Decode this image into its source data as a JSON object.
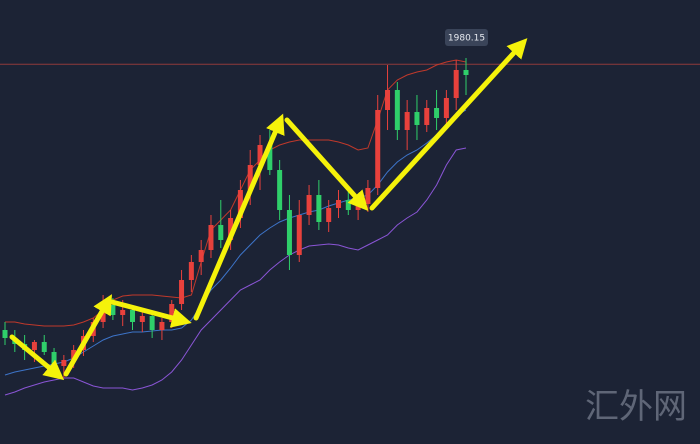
{
  "chart_data": {
    "type": "candlestick",
    "ylim": [
      1904.2,
      1993
    ],
    "up_color": "#e8413c",
    "down_color": "#2fcf6a",
    "open": [
      1927,
      1925.4,
      1924.2,
      1923,
      1924.6,
      1922.6,
      1919.8,
      1921,
      1923,
      1925.8,
      1928.6,
      1932,
      1930,
      1931,
      1928.6,
      1929.8,
      1927,
      1928.6,
      1932.2,
      1937,
      1940.6,
      1943,
      1948,
      1945,
      1949.4,
      1955,
      1960,
      1964,
      1959,
      1951,
      1942,
      1950,
      1954,
      1948.6,
      1951.4,
      1953,
      1951,
      1952.2,
      1955.4,
      1971,
      1975,
      1967,
      1970.6,
      1968,
      1971.4,
      1969.4,
      1973.4,
      1979
    ],
    "high": [
      1928.6,
      1927,
      1926,
      1925,
      1926,
      1923.4,
      1922,
      1924,
      1927,
      1929.4,
      1934,
      1933.4,
      1933,
      1932,
      1931,
      1930.6,
      1929.4,
      1933,
      1939,
      1942,
      1945,
      1950,
      1953,
      1951,
      1957,
      1963,
      1966,
      1967,
      1961,
      1954,
      1953,
      1956,
      1957,
      1953,
      1955,
      1955,
      1953.4,
      1957,
      1974,
      1980,
      1976.6,
      1973,
      1974,
      1973,
      1975,
      1975,
      1981,
      1981.4
    ],
    "low": [
      1924,
      1922.6,
      1921,
      1920.6,
      1922,
      1918.6,
      1917.4,
      1919.4,
      1921.8,
      1924.6,
      1927.4,
      1929,
      1927.8,
      1927,
      1926.6,
      1925.4,
      1925,
      1927.4,
      1931,
      1934.6,
      1938,
      1941.4,
      1943.4,
      1943,
      1947.4,
      1952,
      1955,
      1958,
      1949,
      1939,
      1940.6,
      1948,
      1947,
      1946.6,
      1949.4,
      1950,
      1949,
      1950.6,
      1954,
      1967,
      1965,
      1963,
      1965,
      1966.6,
      1967,
      1968,
      1971,
      1974
    ],
    "close": [
      1925.4,
      1924.2,
      1923,
      1924.6,
      1922.6,
      1919.8,
      1921,
      1923,
      1925.8,
      1928.6,
      1932,
      1930,
      1931,
      1928.6,
      1929.8,
      1927,
      1928.6,
      1932.2,
      1937,
      1940.6,
      1943,
      1948,
      1945,
      1949.4,
      1955,
      1960,
      1964,
      1959,
      1951,
      1942,
      1950,
      1954,
      1948.6,
      1951.4,
      1953,
      1951,
      1952.2,
      1955.4,
      1971,
      1975,
      1967,
      1970.6,
      1968,
      1971.4,
      1969.4,
      1973.4,
      1979,
      1978
    ],
    "bands": [
      {
        "color": "#c0392b",
        "values": [
          1928.6,
          1928.6,
          1928.2,
          1928,
          1927.8,
          1927.8,
          1927.8,
          1928,
          1928.6,
          1929.4,
          1931,
          1933,
          1933.8,
          1934,
          1934,
          1934,
          1933.8,
          1933.6,
          1933.4,
          1934,
          1940.6,
          1947,
          1949,
          1951,
          1955,
          1959,
          1961,
          1963,
          1964,
          1964.6,
          1965,
          1965,
          1965,
          1965,
          1964.6,
          1964,
          1963,
          1963.4,
          1969,
          1975,
          1977,
          1978,
          1978.6,
          1979,
          1980,
          1980.6,
          1981,
          1980.6
        ]
      },
      {
        "color": "#3d74c9",
        "values": [
          1918,
          1918.6,
          1919,
          1919.4,
          1919.8,
          1920.2,
          1920.6,
          1921.4,
          1922.6,
          1923.8,
          1925,
          1925.8,
          1926.2,
          1926.6,
          1926.6,
          1926.8,
          1927,
          1927,
          1927.4,
          1929,
          1932,
          1935,
          1937,
          1939.4,
          1942,
          1944,
          1946,
          1947.4,
          1948.6,
          1949.4,
          1950,
          1950.6,
          1951,
          1951.8,
          1952.4,
          1953,
          1953.4,
          1954,
          1956,
          1958.6,
          1960.6,
          1962,
          1963,
          1964.4,
          1966,
          1968,
          1970,
          1971
        ]
      },
      {
        "color": "#8a55d6",
        "values": [
          1914,
          1914.6,
          1915.4,
          1916,
          1916.6,
          1917,
          1917.4,
          1917.4,
          1916.6,
          1915.8,
          1915.4,
          1915.4,
          1915.4,
          1915,
          1915.4,
          1916,
          1917,
          1918.6,
          1921,
          1924,
          1927,
          1929,
          1931,
          1933,
          1935,
          1936,
          1937,
          1939,
          1940.6,
          1942,
          1943,
          1943.8,
          1944,
          1944.2,
          1944,
          1943.4,
          1943,
          1944,
          1945,
          1946,
          1948,
          1949.4,
          1950.6,
          1953,
          1956,
          1960,
          1963,
          1963.4
        ]
      }
    ],
    "price_line": 1980.15,
    "watermark": "汇外网"
  }
}
